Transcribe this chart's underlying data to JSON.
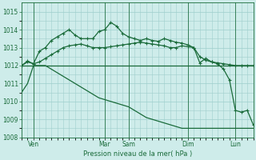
{
  "title": "Pression niveau de la mer( hPa )",
  "bg_color": "#ceecea",
  "grid_color": "#9ecfcc",
  "line_color": "#1a6b3a",
  "ylim": [
    1008,
    1015.5
  ],
  "yticks": [
    1008,
    1009,
    1010,
    1011,
    1012,
    1013,
    1014,
    1015
  ],
  "day_labels": [
    "Ven",
    "Mar",
    "Sam",
    "Dim",
    "Lun"
  ],
  "day_positions": [
    2,
    14,
    18,
    28,
    36
  ],
  "total_points": 40,
  "series_flat": [
    1012.0,
    1012.0,
    1012.0,
    1012.0,
    1012.0,
    1012.0,
    1012.0,
    1012.0,
    1012.0,
    1012.0,
    1012.0,
    1012.0,
    1012.0,
    1012.0,
    1012.0,
    1012.0,
    1012.0,
    1012.0,
    1012.0,
    1012.0,
    1012.0,
    1012.0,
    1012.0,
    1012.0,
    1012.0,
    1012.0,
    1012.0,
    1012.0,
    1012.0,
    1012.0,
    1012.0,
    1012.0,
    1012.0,
    1012.0,
    1012.0,
    1012.0,
    1012.0,
    1012.0,
    1012.0,
    1012.0
  ],
  "series_down": [
    1010.5,
    1011.0,
    1012.0,
    1012.0,
    1012.0,
    1011.8,
    1011.6,
    1011.4,
    1011.2,
    1011.0,
    1010.8,
    1010.6,
    1010.4,
    1010.2,
    1010.1,
    1010.0,
    1009.9,
    1009.8,
    1009.7,
    1009.5,
    1009.3,
    1009.1,
    1009.0,
    1008.9,
    1008.8,
    1008.7,
    1008.6,
    1008.5,
    1008.5,
    1008.5,
    1008.5,
    1008.5,
    1008.5,
    1008.5,
    1008.5,
    1008.5,
    1008.5,
    1008.5,
    1008.5,
    1008.5
  ],
  "series_mid_markers": [
    1012.0,
    1012.2,
    1012.1,
    1012.2,
    1012.4,
    1012.6,
    1012.8,
    1013.0,
    1013.1,
    1013.15,
    1013.2,
    1013.1,
    1013.0,
    1013.0,
    1013.0,
    1013.05,
    1013.1,
    1013.15,
    1013.2,
    1013.25,
    1013.3,
    1013.25,
    1013.2,
    1013.15,
    1013.1,
    1013.0,
    1013.0,
    1013.1,
    1013.05,
    1013.0,
    1012.5,
    1012.3,
    1012.2,
    1012.15,
    1012.1,
    1012.05,
    1012.0,
    1012.0,
    1012.0,
    1012.0
  ],
  "series_high_markers": [
    1012.0,
    1012.25,
    1012.1,
    1012.8,
    1013.0,
    1013.4,
    1013.6,
    1013.8,
    1014.0,
    1013.7,
    1013.5,
    1013.5,
    1013.5,
    1013.9,
    1014.0,
    1014.4,
    1014.2,
    1013.8,
    1013.6,
    1013.5,
    1013.4,
    1013.5,
    1013.4,
    1013.35,
    1013.5,
    1013.4,
    1013.3,
    1013.25,
    1013.15,
    1013.0,
    1012.15,
    1012.4,
    1012.2,
    1012.1,
    1011.8,
    1011.2,
    1009.5,
    1009.4,
    1009.5,
    1008.7
  ]
}
